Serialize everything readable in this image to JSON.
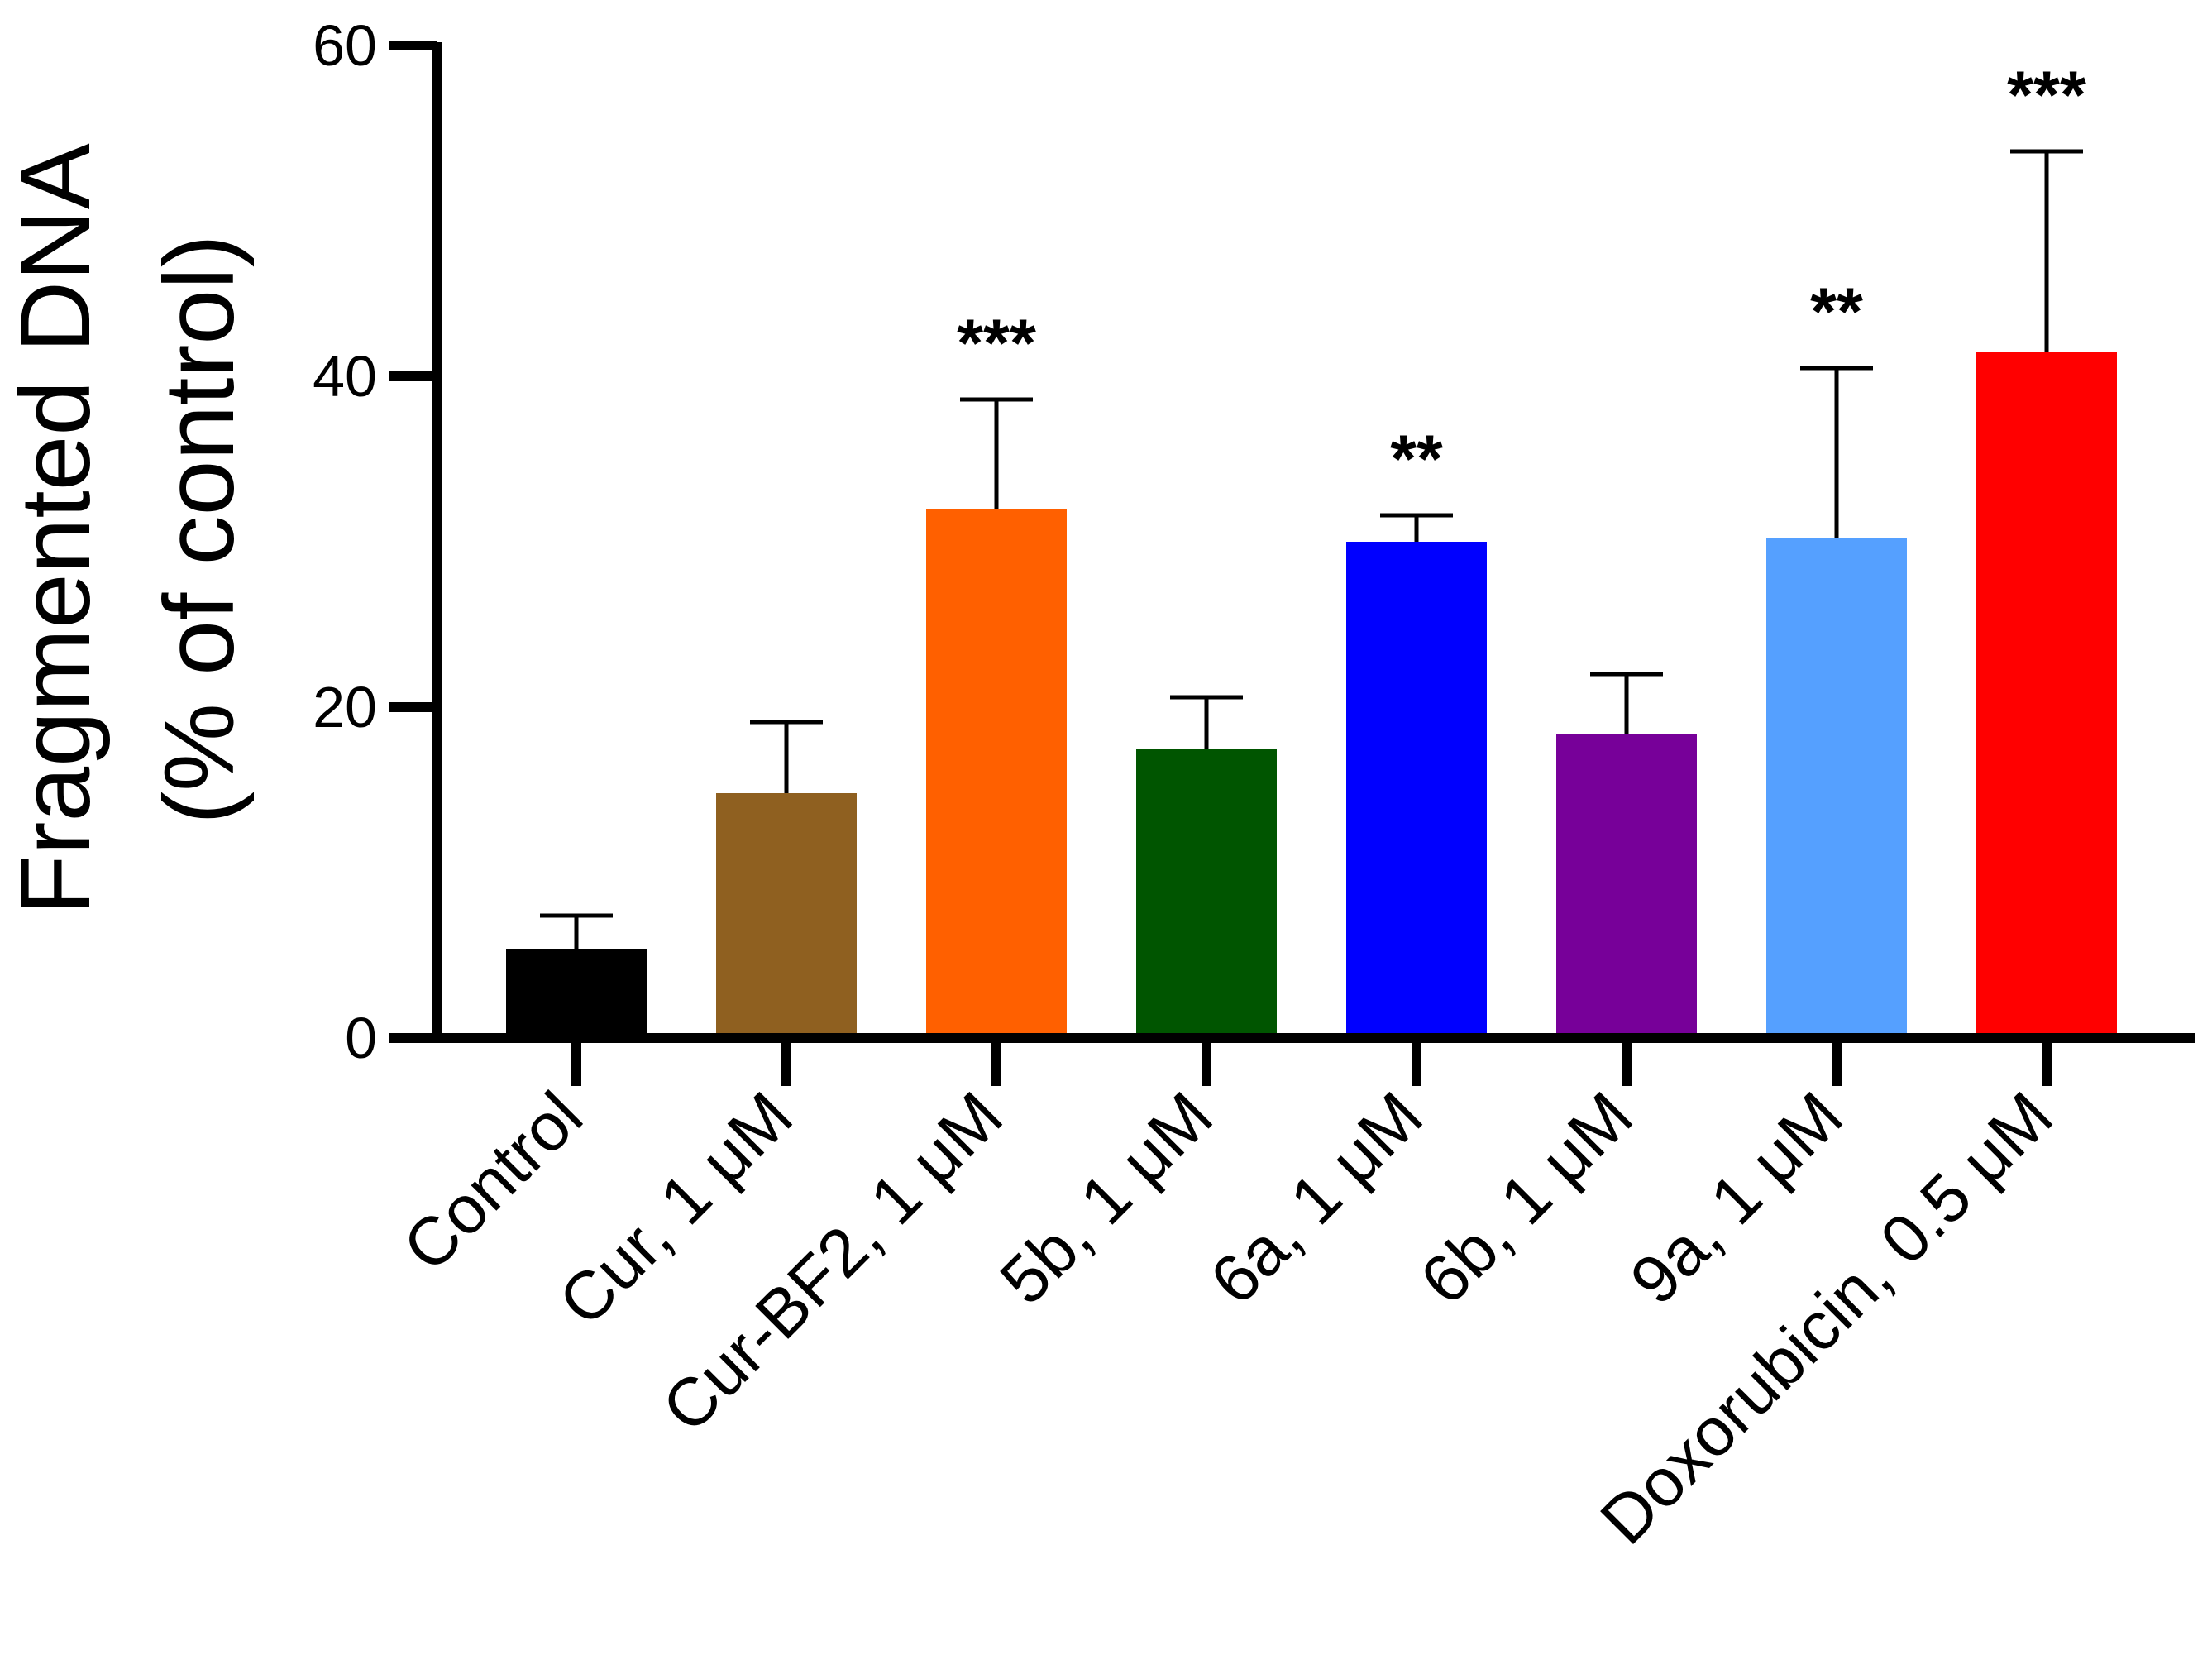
{
  "chart_data": {
    "type": "bar",
    "title": "",
    "xlabel": "",
    "ylabel_lines": [
      "Fragmented DNA",
      "(% of control)"
    ],
    "ylim": [
      0,
      60
    ],
    "yticks": [
      0,
      20,
      40,
      60
    ],
    "categories": [
      "Control",
      "Cur, 1 μM",
      "Cur-BF2, 1 μM",
      "5b, 1 μM",
      "6a, 1 μM",
      "6b, 1 μM",
      "9a, 1 μM",
      "Doxorubicin, 0.5 μM"
    ],
    "values": [
      5.4,
      14.8,
      32.0,
      17.5,
      30.0,
      18.4,
      30.2,
      41.5
    ],
    "errors": [
      2.0,
      4.3,
      6.6,
      3.1,
      1.6,
      3.6,
      10.3,
      12.1
    ],
    "significance": [
      "",
      "",
      "***",
      "",
      "**",
      "",
      "**",
      "***"
    ],
    "colors": [
      "#000000",
      "#8f6020",
      "#ff6000",
      "#005500",
      "#0000ff",
      "#770099",
      "#55a0ff",
      "#ff0000"
    ]
  }
}
